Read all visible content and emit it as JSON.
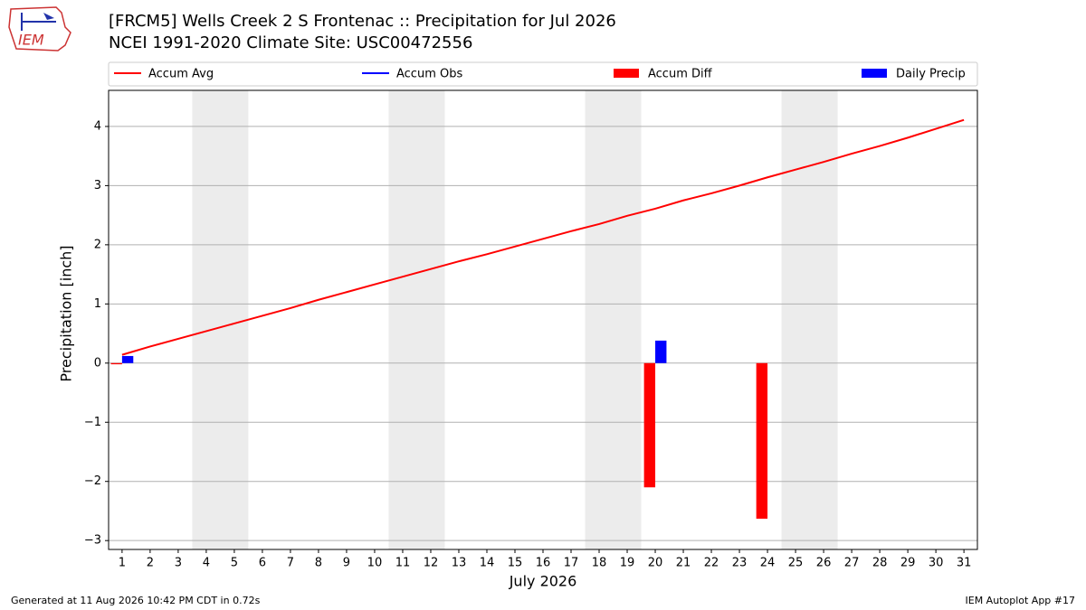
{
  "logo": "IEM",
  "chart_data": {
    "type": "combo",
    "title": "[FRCM5] Wells Creek 2 S Frontenac :: Precipitation for Jul 2026",
    "subtitle": "NCEI 1991-2020 Climate Site: USC00472556",
    "xlabel": "July 2026",
    "ylabel": "Precipitation [inch]",
    "x": [
      1,
      2,
      3,
      4,
      5,
      6,
      7,
      8,
      9,
      10,
      11,
      12,
      13,
      14,
      15,
      16,
      17,
      18,
      19,
      20,
      21,
      22,
      23,
      24,
      25,
      26,
      27,
      28,
      29,
      30,
      31
    ],
    "xlim": [
      0.52,
      31.48
    ],
    "xticks": [
      1,
      2,
      3,
      4,
      5,
      6,
      7,
      8,
      9,
      10,
      11,
      12,
      13,
      14,
      15,
      16,
      17,
      18,
      19,
      20,
      21,
      22,
      23,
      24,
      25,
      26,
      27,
      28,
      29,
      30,
      31
    ],
    "ylim": [
      -3.15,
      4.61
    ],
    "yticks": [
      {
        "value": -3,
        "label": "−3"
      },
      {
        "value": -2,
        "label": "−2"
      },
      {
        "value": -1,
        "label": "−1"
      },
      0,
      1,
      2,
      3,
      4
    ],
    "grid": true,
    "shading": [
      [
        3.5,
        5.5
      ],
      [
        10.5,
        12.5
      ],
      [
        17.5,
        19.5
      ],
      [
        24.5,
        26.5
      ]
    ],
    "shading_color": "#ececec",
    "series": [
      {
        "name": "Accum Avg",
        "color": "#ff0000",
        "kind": "line",
        "values": [
          0.14,
          0.28,
          0.41,
          0.54,
          0.67,
          0.8,
          0.93,
          1.07,
          1.2,
          1.33,
          1.46,
          1.59,
          1.72,
          1.84,
          1.97,
          2.1,
          2.23,
          2.35,
          2.49,
          2.61,
          2.75,
          2.87,
          3.0,
          3.14,
          3.27,
          3.4,
          3.54,
          3.67,
          3.81,
          3.96,
          4.11
        ]
      },
      {
        "name": "Accum Obs",
        "color": "#0000ff",
        "kind": "line",
        "values": [
          null,
          null,
          null,
          null,
          null,
          null,
          null,
          null,
          null,
          null,
          null,
          null,
          null,
          null,
          null,
          null,
          null,
          null,
          null,
          null,
          null,
          null,
          null,
          null,
          null,
          null,
          null,
          null,
          null,
          null,
          null
        ]
      },
      {
        "name": "Accum Diff",
        "color": "#ff0000",
        "kind": "bar",
        "offset": -0.2,
        "values": [
          -0.02,
          null,
          null,
          null,
          null,
          null,
          null,
          null,
          null,
          null,
          null,
          null,
          null,
          null,
          null,
          null,
          null,
          null,
          null,
          -2.1,
          null,
          null,
          null,
          -2.63,
          null,
          null,
          null,
          null,
          null,
          null,
          null
        ]
      },
      {
        "name": "Daily Precip",
        "color": "#0000ff",
        "kind": "bar",
        "offset": 0.2,
        "values": [
          0.12,
          null,
          null,
          null,
          null,
          null,
          null,
          null,
          null,
          null,
          null,
          null,
          null,
          null,
          null,
          null,
          null,
          null,
          null,
          0.38,
          null,
          null,
          null,
          null,
          null,
          null,
          null,
          null,
          null,
          null,
          null
        ]
      }
    ]
  },
  "footer": {
    "left": "Generated at 11 Aug 2026 10:42 PM CDT in 0.72s",
    "right": "IEM Autoplot App #17"
  }
}
